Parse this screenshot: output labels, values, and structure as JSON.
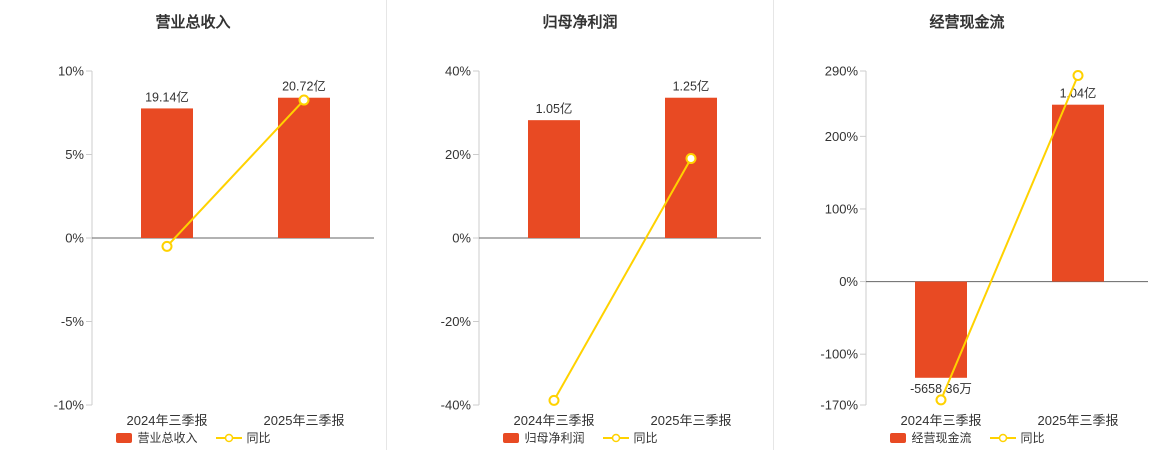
{
  "colors": {
    "bar": "#e84a23",
    "line": "#ffd200",
    "axis": "#cccccc",
    "zero_line": "#666666",
    "text": "#333333",
    "title": "#333333",
    "divider": "#e6e6e6",
    "background": "#ffffff"
  },
  "chart_data": [
    {
      "type": "bar+line",
      "title": "营业总收入",
      "categories": [
        "2024年三季报",
        "2025年三季报"
      ],
      "bars": {
        "name": "营业总收入",
        "values": [
          19.14,
          20.72
        ],
        "labels": [
          "19.14亿",
          "20.72亿"
        ]
      },
      "line": {
        "name": "同比",
        "values": [
          -0.5,
          8.26
        ]
      },
      "y_axis": {
        "min": -10,
        "max": 10,
        "ticks": [
          10,
          5,
          0,
          -5,
          -10
        ],
        "tick_labels": [
          "10%",
          "5%",
          "0%",
          "-5%",
          "-10%"
        ]
      }
    },
    {
      "type": "bar+line",
      "title": "归母净利润",
      "categories": [
        "2024年三季报",
        "2025年三季报"
      ],
      "bars": {
        "name": "归母净利润",
        "values": [
          1.05,
          1.25
        ],
        "labels": [
          "1.05亿",
          "1.25亿"
        ]
      },
      "line": {
        "name": "同比",
        "values": [
          -38.9,
          19.05
        ]
      },
      "y_axis": {
        "min": -40,
        "max": 40,
        "ticks": [
          40,
          20,
          0,
          -20,
          -40
        ],
        "tick_labels": [
          "40%",
          "20%",
          "0%",
          "-20%",
          "-40%"
        ]
      }
    },
    {
      "type": "bar+line",
      "title": "经营现金流",
      "categories": [
        "2024年三季报",
        "2025年三季报"
      ],
      "bars": {
        "name": "经营现金流",
        "values": [
          -0.5658,
          1.04
        ],
        "labels": [
          "-5658.36万",
          "1.04亿"
        ]
      },
      "line": {
        "name": "同比",
        "values": [
          -163,
          283.8
        ]
      },
      "y_axis": {
        "min": -170,
        "max": 290,
        "ticks": [
          290,
          200,
          100,
          0,
          -100,
          -170
        ],
        "tick_labels": [
          "290%",
          "200%",
          "100%",
          "0%",
          "-100%",
          "-170%"
        ]
      }
    }
  ]
}
